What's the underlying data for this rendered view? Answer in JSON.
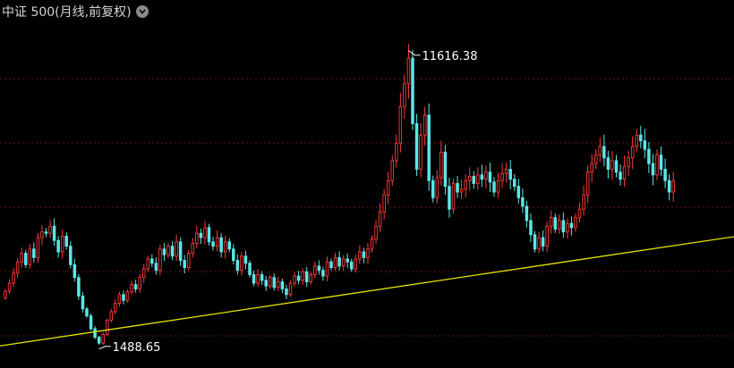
{
  "header": {
    "title": "中证 500(月线,前复权)",
    "dropdown_icon": "chevron-down-icon"
  },
  "colors": {
    "background": "#000000",
    "up": "#ff3b3b",
    "down": "#5ce6e6",
    "trendline": "#e6e600",
    "grid": "#6b1515",
    "annotation": "#ffffff"
  },
  "chart_data": {
    "type": "candlestick",
    "title": "中证 500(月线,前复权)",
    "grid": true,
    "annotations": {
      "max_label": "11616.38",
      "min_label": "1488.65",
      "max_value": 11616.38,
      "min_value": 1488.65
    },
    "ylim": [
      1000,
      12600
    ],
    "trendline": {
      "start_index": -6,
      "start_value": 1300,
      "end_index": 215,
      "end_value": 6000
    },
    "series": [
      {
        "name": "",
        "values": [
          3320,
          3600,
          3950,
          4350,
          4650,
          4250,
          4800,
          4500,
          5200,
          5400,
          5350,
          5600,
          5100,
          4700,
          5250,
          4900,
          4250,
          3800,
          3150,
          2700,
          2450,
          2000,
          1700,
          1500,
          1800,
          2300,
          2600,
          2900,
          3200,
          3000,
          3300,
          3550,
          3400,
          3800,
          4100,
          4450,
          4300,
          4050,
          4800,
          4600,
          4900,
          4550,
          5050,
          4400,
          4150,
          4650,
          5000,
          5350,
          5200,
          5550,
          5050,
          4900,
          5200,
          4700,
          5050,
          4800,
          4400,
          4050,
          4550,
          4300,
          3900,
          3600,
          3900,
          3700,
          3500,
          3800,
          3450,
          3650,
          3400,
          3200,
          3600,
          3850,
          3700,
          4000,
          3650,
          3900,
          4200,
          4050,
          3850,
          4350,
          4150,
          4500,
          4200,
          4450,
          4350,
          4100,
          4450,
          4700,
          4500,
          4800,
          5150,
          5600,
          6100,
          6700,
          7200,
          7900,
          8500,
          9800,
          10600,
          11500,
          9200,
          7600,
          8800,
          9500,
          7200,
          6600,
          7300,
          8200,
          7000,
          6200,
          7100,
          6800,
          6900,
          7200,
          7350,
          7100,
          7400,
          7250,
          7500,
          7150,
          6800,
          7200,
          7450,
          7600,
          7250,
          7000,
          6600,
          6300,
          5800,
          5300,
          4800,
          5200,
          4900,
          5600,
          5900,
          5500,
          5800,
          5400,
          5700,
          5550,
          5900,
          6200,
          6700,
          7500,
          7800,
          8100,
          8400,
          8000,
          7600,
          7900,
          7500,
          7250,
          7700,
          8000,
          8400,
          8800,
          8600,
          8300,
          7800,
          7400,
          8100,
          7600,
          7200,
          6800,
          7200
        ]
      }
    ]
  }
}
